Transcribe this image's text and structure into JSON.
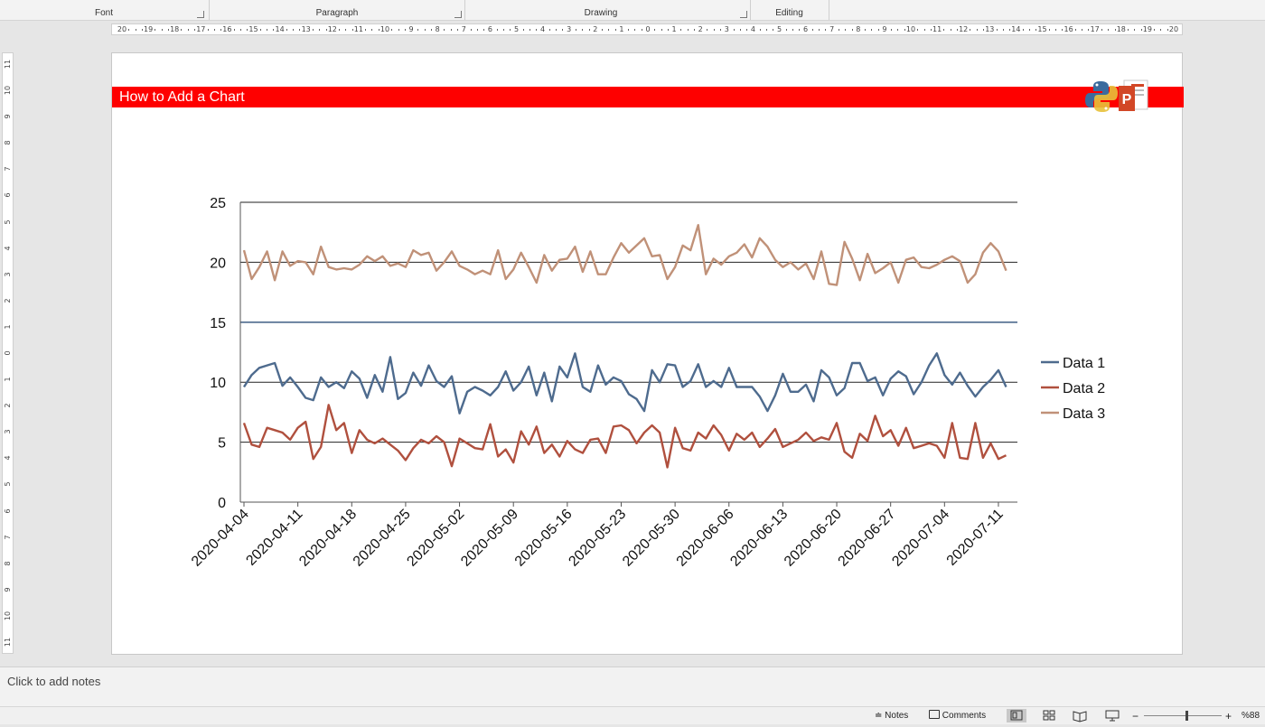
{
  "ribbon": {
    "groups": [
      "Font",
      "Paragraph",
      "Drawing",
      "Editing"
    ]
  },
  "ruler": {
    "horizontal_labels": [
      "20",
      "19",
      "18",
      "17",
      "16",
      "15",
      "14",
      "13",
      "12",
      "11",
      "10",
      "9",
      "8",
      "7",
      "6",
      "5",
      "4",
      "3",
      "2",
      "1",
      "0",
      "1",
      "2",
      "3",
      "4",
      "5",
      "6",
      "7",
      "8",
      "9",
      "10",
      "11",
      "12",
      "13",
      "14",
      "15",
      "16",
      "17",
      "18",
      "19",
      "20"
    ],
    "vertical_labels": [
      "11",
      "10",
      "9",
      "8",
      "7",
      "6",
      "5",
      "4",
      "3",
      "2",
      "1",
      "0",
      "1",
      "2",
      "3",
      "4",
      "5",
      "6",
      "7",
      "8",
      "9",
      "10",
      "11"
    ]
  },
  "slide": {
    "title": "How to Add a Chart",
    "title_bar_color": "#fe0000",
    "logo_icons": [
      "python-logo-icon",
      "powerpoint-logo-icon"
    ]
  },
  "chart_data": {
    "type": "line",
    "ylim": [
      0,
      25
    ],
    "yticks": [
      "0",
      "5",
      "10",
      "15",
      "20",
      "25"
    ],
    "grid": true,
    "legend_position": "right",
    "x_dates": [
      "2020-04-04",
      "2020-04-05",
      "2020-04-06",
      "2020-04-07",
      "2020-04-08",
      "2020-04-09",
      "2020-04-10",
      "2020-04-11",
      "2020-04-12",
      "2020-04-13",
      "2020-04-14",
      "2020-04-15",
      "2020-04-16",
      "2020-04-17",
      "2020-04-18",
      "2020-04-19",
      "2020-04-20",
      "2020-04-21",
      "2020-04-22",
      "2020-04-23",
      "2020-04-24",
      "2020-04-25",
      "2020-04-26",
      "2020-04-27",
      "2020-04-28",
      "2020-04-29",
      "2020-04-30",
      "2020-05-01",
      "2020-05-02",
      "2020-05-03",
      "2020-05-04",
      "2020-05-05",
      "2020-05-06",
      "2020-05-07",
      "2020-05-08",
      "2020-05-09",
      "2020-05-10",
      "2020-05-11",
      "2020-05-12",
      "2020-05-13",
      "2020-05-14",
      "2020-05-15",
      "2020-05-16",
      "2020-05-17",
      "2020-05-18",
      "2020-05-19",
      "2020-05-20",
      "2020-05-21",
      "2020-05-22",
      "2020-05-23",
      "2020-05-24",
      "2020-05-25",
      "2020-05-26",
      "2020-05-27",
      "2020-05-28",
      "2020-05-29",
      "2020-05-30",
      "2020-05-31",
      "2020-06-01",
      "2020-06-02",
      "2020-06-03",
      "2020-06-04",
      "2020-06-05",
      "2020-06-06",
      "2020-06-07",
      "2020-06-08",
      "2020-06-09",
      "2020-06-10",
      "2020-06-11",
      "2020-06-12",
      "2020-06-13",
      "2020-06-14",
      "2020-06-15",
      "2020-06-16",
      "2020-06-17",
      "2020-06-18",
      "2020-06-19",
      "2020-06-20",
      "2020-06-21",
      "2020-06-22",
      "2020-06-23",
      "2020-06-24",
      "2020-06-25",
      "2020-06-26",
      "2020-06-27",
      "2020-06-28",
      "2020-06-29",
      "2020-06-30",
      "2020-07-01",
      "2020-07-02",
      "2020-07-03",
      "2020-07-04",
      "2020-07-05",
      "2020-07-06",
      "2020-07-07",
      "2020-07-08",
      "2020-07-09",
      "2020-07-10",
      "2020-07-11",
      "2020-07-12",
      "2020-07-13"
    ],
    "xtick_labels": [
      "2020-04-04",
      "2020-04-11",
      "2020-04-18",
      "2020-04-25",
      "2020-05-02",
      "2020-05-09",
      "2020-05-16",
      "2020-05-23",
      "2020-05-30",
      "2020-06-06",
      "2020-06-13",
      "2020-06-20",
      "2020-06-27",
      "2020-07-04",
      "2020-07-11"
    ],
    "series": [
      {
        "name": "Data 1",
        "color": "#4e6b8e",
        "values": [
          9.6,
          10.6,
          11.2,
          11.4,
          11.6,
          9.7,
          10.4,
          9.6,
          8.7,
          8.5,
          10.4,
          9.6,
          10.0,
          9.5,
          10.9,
          10.3,
          8.7,
          10.6,
          9.2,
          12.1,
          8.6,
          9.1,
          10.8,
          9.7,
          11.4,
          10.1,
          9.6,
          10.5,
          7.4,
          9.2,
          9.6,
          9.3,
          8.9,
          9.6,
          10.9,
          9.3,
          10.0,
          11.3,
          8.9,
          10.8,
          8.4,
          11.3,
          10.4,
          12.4,
          9.6,
          9.2,
          11.4,
          9.8,
          10.4,
          10.1,
          9.0,
          8.6,
          7.6,
          11.0,
          10.0,
          11.5,
          11.4,
          9.6,
          10.1,
          11.5,
          9.6,
          10.1,
          9.6,
          11.2,
          9.6,
          9.6,
          9.6,
          8.8,
          7.6,
          8.9,
          10.7,
          9.2,
          9.2,
          9.8,
          8.4,
          11.0,
          10.4,
          8.9,
          9.5,
          11.6,
          11.6,
          10.1,
          10.4,
          8.9,
          10.3,
          10.9,
          10.5,
          9.0,
          10.0,
          11.4,
          12.4,
          10.6,
          9.8,
          10.8,
          9.7,
          8.8,
          9.6,
          10.2,
          11.0,
          9.6
        ]
      },
      {
        "name": "Data 2",
        "color": "#b0503e",
        "values": [
          6.6,
          4.8,
          4.6,
          6.2,
          6.0,
          5.8,
          5.2,
          6.2,
          6.7,
          3.6,
          4.6,
          8.1,
          6.0,
          6.6,
          4.1,
          6.0,
          5.2,
          4.9,
          5.3,
          4.8,
          4.3,
          3.5,
          4.5,
          5.2,
          4.9,
          5.5,
          5.0,
          3.0,
          5.3,
          4.9,
          4.5,
          4.4,
          6.5,
          3.8,
          4.4,
          3.3,
          5.9,
          4.8,
          6.3,
          4.1,
          4.8,
          3.8,
          5.1,
          4.4,
          4.1,
          5.2,
          5.3,
          4.1,
          6.3,
          6.4,
          6.0,
          4.9,
          5.8,
          6.4,
          5.8,
          2.9,
          6.2,
          4.5,
          4.3,
          5.8,
          5.3,
          6.4,
          5.6,
          4.3,
          5.7,
          5.2,
          5.8,
          4.6,
          5.3,
          6.1,
          4.6,
          4.9,
          5.2,
          5.8,
          5.1,
          5.4,
          5.2,
          6.6,
          4.2,
          3.7,
          5.7,
          5.1,
          7.2,
          5.5,
          6.0,
          4.7,
          6.2,
          4.5,
          4.7,
          4.9,
          4.7,
          3.7,
          6.6,
          3.7,
          3.6,
          6.6,
          3.7,
          4.9,
          3.6,
          3.9
        ]
      },
      {
        "name": "Data 3",
        "color": "#c09178",
        "values": [
          21.0,
          18.6,
          19.6,
          20.9,
          18.5,
          20.9,
          19.7,
          20.1,
          20.0,
          19.0,
          21.3,
          19.6,
          19.4,
          19.5,
          19.4,
          19.8,
          20.5,
          20.1,
          20.5,
          19.7,
          19.9,
          19.6,
          21.0,
          20.6,
          20.8,
          19.3,
          20.0,
          20.9,
          19.7,
          19.4,
          19.0,
          19.3,
          19.0,
          21.0,
          18.6,
          19.4,
          20.8,
          19.6,
          18.3,
          20.6,
          19.3,
          20.2,
          20.3,
          21.3,
          19.2,
          20.9,
          19.0,
          19.0,
          20.4,
          21.6,
          20.8,
          21.4,
          22.0,
          20.5,
          20.6,
          18.6,
          19.6,
          21.4,
          21.0,
          23.1,
          19.0,
          20.3,
          19.8,
          20.5,
          20.8,
          21.5,
          20.4,
          22.0,
          21.3,
          20.2,
          19.6,
          20.0,
          19.4,
          19.9,
          18.6,
          20.9,
          18.2,
          18.1,
          21.7,
          20.3,
          18.5,
          20.7,
          19.1,
          19.5,
          20.0,
          18.3,
          20.2,
          20.4,
          19.6,
          19.5,
          19.8,
          20.2,
          20.5,
          20.1,
          18.3,
          19.0,
          20.8,
          21.6,
          20.9,
          19.3
        ]
      }
    ]
  },
  "notes": {
    "placeholder": "Click to add notes"
  },
  "status_bar": {
    "notes_label": "Notes",
    "comments_label": "Comments",
    "zoom_minus": "−",
    "zoom_plus": "+",
    "zoom_level": "%88",
    "zoom_fraction": 0.55
  }
}
